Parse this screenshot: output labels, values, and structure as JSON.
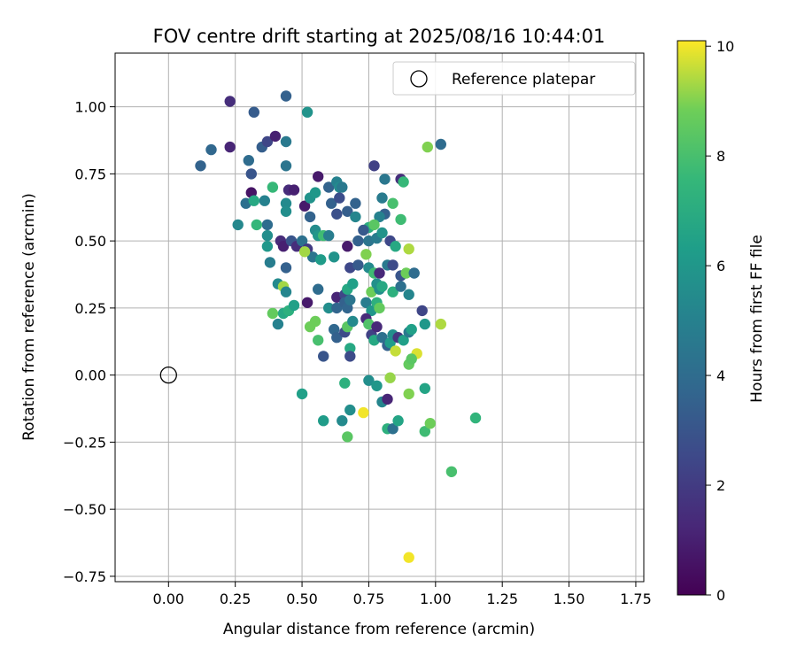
{
  "chart_data": {
    "type": "scatter",
    "title": "FOV centre drift starting at 2025/08/16 10:44:01",
    "xlabel": "Angular distance from reference (arcmin)",
    "ylabel": "Rotation from reference (arcmin)",
    "xlim": [
      -0.2,
      1.78
    ],
    "ylim": [
      -0.77,
      1.2
    ],
    "xticks": [
      "0.00",
      "0.25",
      "0.50",
      "0.75",
      "1.00",
      "1.25",
      "1.50",
      "1.75"
    ],
    "yticks": [
      "1.00",
      "0.75",
      "0.50",
      "0.25",
      "0.00",
      "−0.25",
      "−0.50",
      "−0.75"
    ],
    "grid": true,
    "legend": {
      "placement": "top-right",
      "entries": [
        "Reference platepar"
      ]
    },
    "reference": {
      "x": 0.0,
      "y": 0.0
    },
    "colorbar": {
      "label": "Hours from first FF file",
      "range": [
        0,
        10.1
      ],
      "ticks": [
        "0",
        "2",
        "4",
        "6",
        "8",
        "10"
      ],
      "colormap": "viridis"
    },
    "points": [
      [
        0.23,
        1.02,
        1.5
      ],
      [
        0.44,
        1.04,
        3.5
      ],
      [
        0.32,
        0.98,
        3.3
      ],
      [
        0.52,
        0.98,
        5.8
      ],
      [
        0.23,
        0.85,
        1.2
      ],
      [
        0.12,
        0.78,
        3.6
      ],
      [
        0.16,
        0.84,
        3.8
      ],
      [
        0.3,
        0.8,
        4.0
      ],
      [
        0.35,
        0.85,
        3.4
      ],
      [
        0.37,
        0.87,
        2.4
      ],
      [
        0.4,
        0.89,
        1.0
      ],
      [
        0.44,
        0.87,
        4.6
      ],
      [
        0.44,
        0.78,
        4.4
      ],
      [
        0.31,
        0.75,
        3.0
      ],
      [
        0.31,
        0.68,
        0.6
      ],
      [
        0.29,
        0.64,
        4.2
      ],
      [
        0.36,
        0.65,
        5.0
      ],
      [
        0.32,
        0.65,
        6.8
      ],
      [
        0.39,
        0.7,
        7.6
      ],
      [
        0.44,
        0.64,
        5.4
      ],
      [
        0.44,
        0.61,
        5.6
      ],
      [
        0.45,
        0.69,
        1.4
      ],
      [
        0.47,
        0.69,
        1.0
      ],
      [
        0.51,
        0.63,
        0.8
      ],
      [
        0.53,
        0.59,
        3.6
      ],
      [
        0.53,
        0.66,
        5.8
      ],
      [
        0.55,
        0.68,
        6.0
      ],
      [
        0.56,
        0.74,
        0.8
      ],
      [
        0.6,
        0.7,
        3.6
      ],
      [
        0.63,
        0.72,
        5.0
      ],
      [
        0.64,
        0.7,
        5.4
      ],
      [
        0.65,
        0.7,
        4.6
      ],
      [
        0.61,
        0.64,
        3.5
      ],
      [
        0.63,
        0.6,
        2.8
      ],
      [
        0.64,
        0.66,
        2.7
      ],
      [
        0.67,
        0.61,
        3.4
      ],
      [
        0.7,
        0.64,
        3.6
      ],
      [
        0.7,
        0.59,
        5.2
      ],
      [
        0.77,
        0.78,
        2.2
      ],
      [
        0.81,
        0.73,
        4.5
      ],
      [
        0.87,
        0.73,
        1.5
      ],
      [
        0.88,
        0.72,
        7.6
      ],
      [
        0.97,
        0.85,
        9.0
      ],
      [
        1.02,
        0.86,
        4.0
      ],
      [
        0.8,
        0.66,
        4.7
      ],
      [
        0.84,
        0.64,
        8.0
      ],
      [
        0.81,
        0.6,
        3.5
      ],
      [
        0.79,
        0.59,
        5.0
      ],
      [
        0.87,
        0.58,
        7.8
      ],
      [
        0.75,
        0.55,
        7.0
      ],
      [
        0.77,
        0.56,
        8.4
      ],
      [
        0.26,
        0.56,
        5.3
      ],
      [
        0.37,
        0.56,
        4.0
      ],
      [
        0.33,
        0.56,
        7.5
      ],
      [
        0.37,
        0.52,
        5.6
      ],
      [
        0.37,
        0.48,
        6.0
      ],
      [
        0.42,
        0.5,
        1.4
      ],
      [
        0.43,
        0.48,
        1.0
      ],
      [
        0.46,
        0.5,
        3.0
      ],
      [
        0.48,
        0.48,
        1.5
      ],
      [
        0.5,
        0.5,
        4.2
      ],
      [
        0.52,
        0.47,
        2.0
      ],
      [
        0.54,
        0.44,
        4.4
      ],
      [
        0.55,
        0.54,
        5.5
      ],
      [
        0.56,
        0.52,
        6.0
      ],
      [
        0.58,
        0.52,
        7.8
      ],
      [
        0.6,
        0.52,
        4.8
      ],
      [
        0.57,
        0.43,
        6.2
      ],
      [
        0.62,
        0.44,
        5.8
      ],
      [
        0.51,
        0.46,
        9.3
      ],
      [
        0.67,
        0.48,
        0.8
      ],
      [
        0.71,
        0.5,
        3.5
      ],
      [
        0.73,
        0.54,
        3.2
      ],
      [
        0.75,
        0.5,
        4.4
      ],
      [
        0.78,
        0.51,
        4.7
      ],
      [
        0.8,
        0.53,
        5.8
      ],
      [
        0.83,
        0.5,
        2.5
      ],
      [
        0.85,
        0.48,
        6.8
      ],
      [
        0.9,
        0.47,
        9.4
      ],
      [
        0.38,
        0.42,
        4.8
      ],
      [
        0.44,
        0.4,
        3.5
      ],
      [
        0.68,
        0.4,
        2.5
      ],
      [
        0.71,
        0.41,
        3.2
      ],
      [
        0.74,
        0.45,
        9.0
      ],
      [
        0.75,
        0.4,
        5.4
      ],
      [
        0.77,
        0.38,
        7.8
      ],
      [
        0.79,
        0.38,
        1.3
      ],
      [
        0.82,
        0.41,
        4.6
      ],
      [
        0.84,
        0.41,
        2.6
      ],
      [
        0.87,
        0.37,
        3.0
      ],
      [
        0.89,
        0.38,
        8.8
      ],
      [
        0.92,
        0.38,
        4.0
      ],
      [
        0.41,
        0.34,
        5.4
      ],
      [
        0.43,
        0.33,
        9.3
      ],
      [
        0.44,
        0.31,
        5.2
      ],
      [
        0.56,
        0.32,
        4.0
      ],
      [
        0.63,
        0.29,
        1.2
      ],
      [
        0.66,
        0.3,
        2.4
      ],
      [
        0.67,
        0.32,
        6.8
      ],
      [
        0.69,
        0.34,
        6.4
      ],
      [
        0.76,
        0.31,
        8.8
      ],
      [
        0.78,
        0.34,
        5.7
      ],
      [
        0.79,
        0.32,
        5.6
      ],
      [
        0.8,
        0.33,
        6.8
      ],
      [
        0.84,
        0.31,
        7.2
      ],
      [
        0.87,
        0.33,
        4.2
      ],
      [
        0.9,
        0.3,
        5.2
      ],
      [
        0.52,
        0.27,
        0.8
      ],
      [
        0.39,
        0.23,
        8.6
      ],
      [
        0.41,
        0.19,
        5.0
      ],
      [
        0.43,
        0.23,
        6.8
      ],
      [
        0.45,
        0.24,
        7.2
      ],
      [
        0.47,
        0.26,
        6.4
      ],
      [
        0.6,
        0.25,
        5.6
      ],
      [
        0.63,
        0.25,
        3.7
      ],
      [
        0.66,
        0.27,
        3.5
      ],
      [
        0.67,
        0.25,
        3.7
      ],
      [
        0.68,
        0.28,
        4.4
      ],
      [
        0.74,
        0.27,
        4.8
      ],
      [
        0.76,
        0.24,
        6.0
      ],
      [
        0.78,
        0.27,
        7.2
      ],
      [
        0.79,
        0.25,
        8.6
      ],
      [
        0.95,
        0.24,
        2.4
      ],
      [
        0.53,
        0.18,
        8.8
      ],
      [
        0.55,
        0.2,
        8.8
      ],
      [
        0.56,
        0.13,
        8.0
      ],
      [
        0.58,
        0.07,
        3.0
      ],
      [
        0.62,
        0.17,
        3.8
      ],
      [
        0.63,
        0.14,
        3.5
      ],
      [
        0.66,
        0.16,
        2.6
      ],
      [
        0.67,
        0.18,
        8.4
      ],
      [
        0.68,
        0.1,
        6.8
      ],
      [
        0.68,
        0.07,
        2.6
      ],
      [
        0.69,
        0.2,
        5.4
      ],
      [
        0.74,
        0.21,
        1.4
      ],
      [
        0.75,
        0.19,
        8.2
      ],
      [
        0.76,
        0.15,
        2.2
      ],
      [
        0.77,
        0.13,
        6.8
      ],
      [
        0.78,
        0.18,
        1.3
      ],
      [
        0.8,
        0.14,
        4.2
      ],
      [
        0.82,
        0.11,
        3.5
      ],
      [
        0.83,
        0.12,
        6.2
      ],
      [
        0.84,
        0.15,
        5.6
      ],
      [
        0.85,
        0.09,
        9.6
      ],
      [
        0.86,
        0.14,
        1.8
      ],
      [
        0.88,
        0.13,
        6.4
      ],
      [
        0.9,
        0.16,
        4.6
      ],
      [
        0.91,
        0.17,
        6.4
      ],
      [
        0.93,
        0.08,
        9.8
      ],
      [
        0.96,
        0.19,
        6.0
      ],
      [
        0.9,
        0.04,
        8.6
      ],
      [
        0.91,
        0.06,
        8.4
      ],
      [
        1.02,
        0.19,
        9.4
      ],
      [
        0.5,
        -0.07,
        6.4
      ],
      [
        0.58,
        -0.17,
        6.2
      ],
      [
        0.65,
        -0.17,
        5.4
      ],
      [
        0.66,
        -0.03,
        7.2
      ],
      [
        0.68,
        -0.13,
        5.6
      ],
      [
        0.73,
        -0.14,
        10.0
      ],
      [
        0.75,
        -0.02,
        5.6
      ],
      [
        0.78,
        -0.04,
        6.0
      ],
      [
        0.8,
        -0.1,
        5.2
      ],
      [
        0.82,
        -0.09,
        1.2
      ],
      [
        0.83,
        -0.01,
        9.2
      ],
      [
        0.82,
        -0.2,
        7.2
      ],
      [
        0.84,
        -0.2,
        4.2
      ],
      [
        0.86,
        -0.17,
        6.6
      ],
      [
        0.9,
        -0.07,
        9.0
      ],
      [
        0.96,
        -0.05,
        6.6
      ],
      [
        0.96,
        -0.21,
        7.8
      ],
      [
        0.98,
        -0.18,
        8.8
      ],
      [
        0.67,
        -0.23,
        8.4
      ],
      [
        1.06,
        -0.36,
        8.0
      ],
      [
        1.15,
        -0.16,
        7.4
      ],
      [
        0.9,
        -0.68,
        10.0
      ]
    ]
  }
}
